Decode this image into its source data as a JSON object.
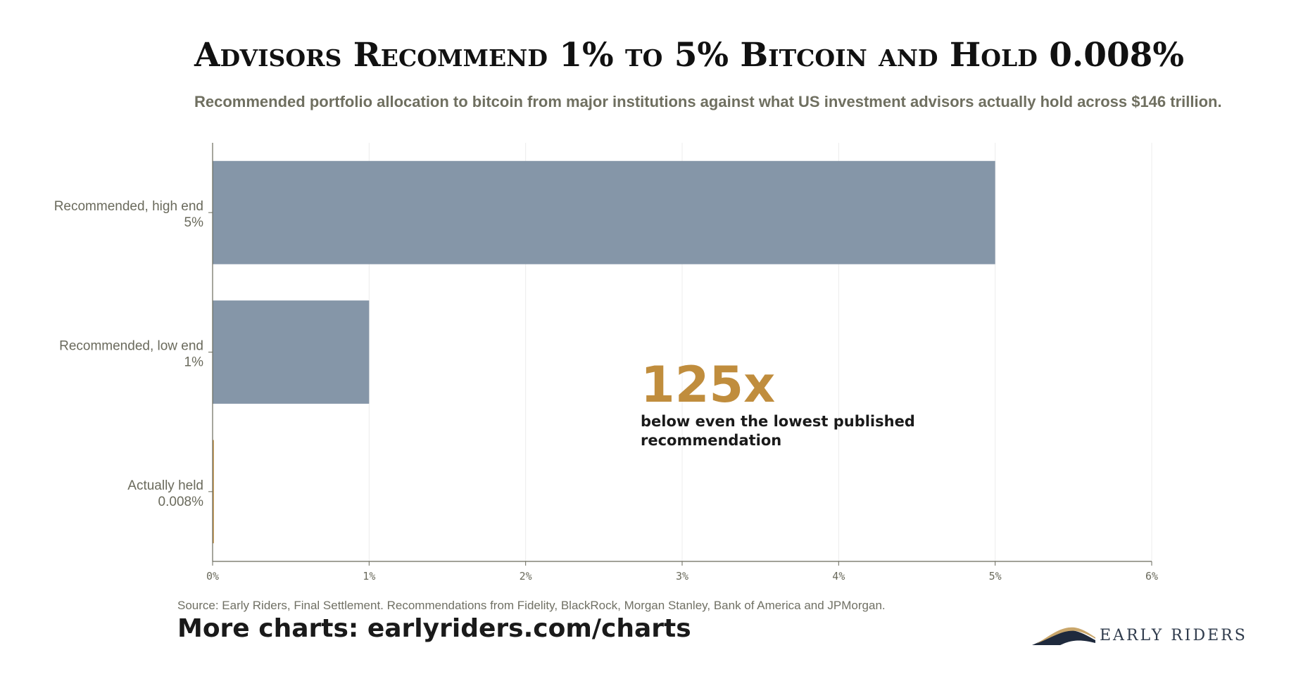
{
  "header": {
    "title": "Advisors Recommend 1% to 5% Bitcoin and Hold 0.008%",
    "subtitle": "Recommended portfolio allocation to bitcoin from major institutions against what US investment advisors actually hold across $146 trillion."
  },
  "chart_data": {
    "type": "bar",
    "orientation": "horizontal",
    "categories": [
      "Recommended, high end",
      "Recommended, low end",
      "Actually held"
    ],
    "value_labels": [
      "5%",
      "1%",
      "0.008%"
    ],
    "values": [
      5,
      1,
      0.008
    ],
    "unit": "%",
    "xlim": [
      0,
      6
    ],
    "x_ticks": [
      0,
      1,
      2,
      3,
      4,
      5,
      6
    ],
    "x_tick_labels": [
      "0%",
      "1%",
      "2%",
      "3%",
      "4%",
      "5%",
      "6%"
    ],
    "grid": "vertical",
    "legend": "none",
    "bar_colors": [
      "#8596a8",
      "#8596a8",
      "#c08d3d"
    ],
    "annotation": {
      "value": "125x",
      "text": "below even the lowest published recommendation",
      "color": "#c08d3d"
    }
  },
  "footer": {
    "source": "Source: Early Riders, Final Settlement. Recommendations from Fidelity, BlackRock, Morgan Stanley, Bank of America and JPMorgan.",
    "more_charts": "More charts: earlyriders.com/charts"
  },
  "logo": {
    "text": "EARLY RIDERS",
    "icon": "mountain-logo-icon"
  },
  "colors": {
    "accent": "#c08d3d",
    "bar": "#8596a8",
    "axis": "#6a6a5c",
    "grid": "#ececec",
    "logo_navy": "#1f2a3d"
  }
}
